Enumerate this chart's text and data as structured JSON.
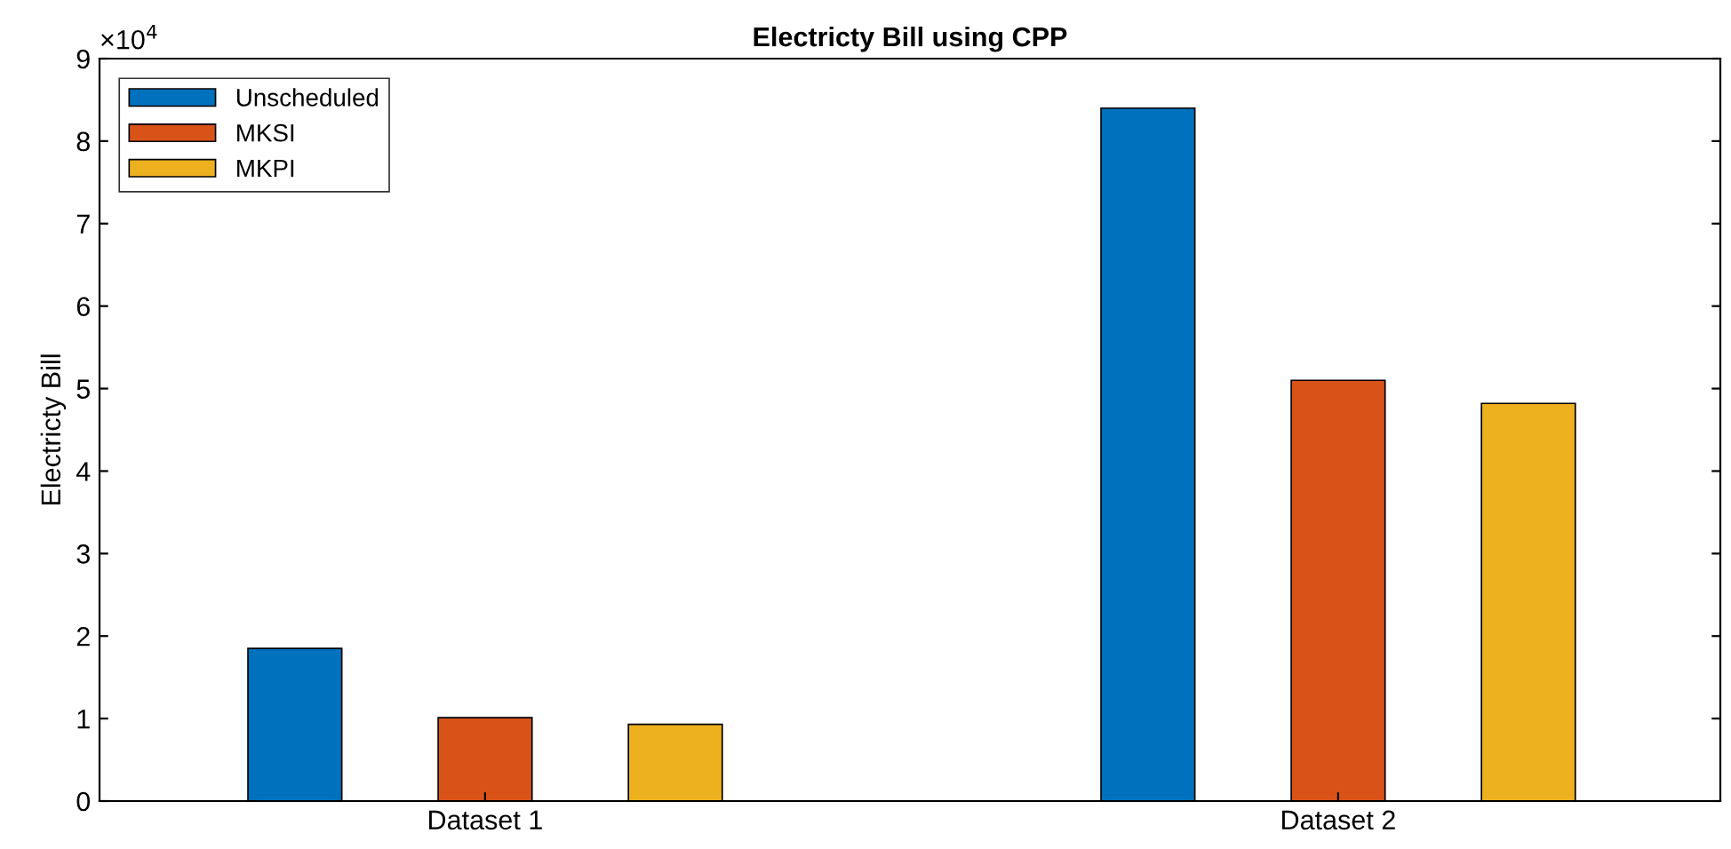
{
  "chart_data": {
    "type": "bar",
    "title": "Electricty Bill using CPP",
    "ylabel": "Electricty Bill",
    "categories": [
      "Dataset 1",
      "Dataset 2"
    ],
    "series": [
      {
        "name": "Unscheduled",
        "color": "#0072bd",
        "values": [
          1.85,
          8.4
        ]
      },
      {
        "name": "MKSI",
        "color": "#d95319",
        "values": [
          1.01,
          5.1
        ]
      },
      {
        "name": "MKPI",
        "color": "#edb120",
        "values": [
          0.93,
          4.82
        ]
      }
    ],
    "ylim": [
      0,
      9
    ],
    "yticks": [
      0,
      1,
      2,
      3,
      4,
      5,
      6,
      7,
      8,
      9
    ],
    "annotations": [
      "×10$^{4}$"
    ],
    "grid": false,
    "legend": "top left"
  }
}
